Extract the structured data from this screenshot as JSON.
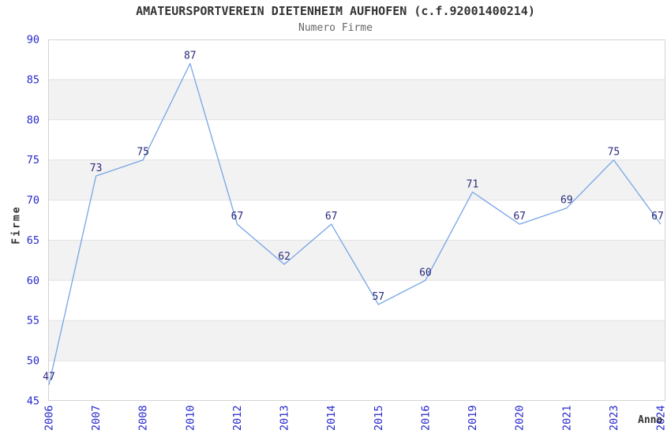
{
  "chart_data": {
    "type": "line",
    "title": "AMATEURSPORTVEREIN DIETENHEIM AUFHOFEN (c.f.92001400214)",
    "subtitle": "Numero Firme",
    "xlabel": "Anno",
    "ylabel": "Firme",
    "categories": [
      "2006",
      "2007",
      "2008",
      "2010",
      "2012",
      "2013",
      "2014",
      "2015",
      "2016",
      "2019",
      "2020",
      "2021",
      "2023",
      "2024"
    ],
    "values": [
      47,
      73,
      75,
      87,
      67,
      62,
      67,
      57,
      60,
      71,
      67,
      69,
      75,
      67
    ],
    "ylim": [
      45,
      90
    ],
    "ytick_step": 5,
    "grid": "horizontal",
    "alternating_bands": true,
    "legend": "none",
    "point_labels_visible": true,
    "colors": {
      "line": "#76a5e6",
      "tick_label": "#2727cd",
      "point_label": "#2a2a7d",
      "axis_title": "#333333",
      "title": "#333333",
      "subtitle": "#666666",
      "band": "#f2f2f2",
      "gridline": "#e2e2e2",
      "plot_border": "#d4d4d4",
      "background": "#ffffff"
    }
  }
}
